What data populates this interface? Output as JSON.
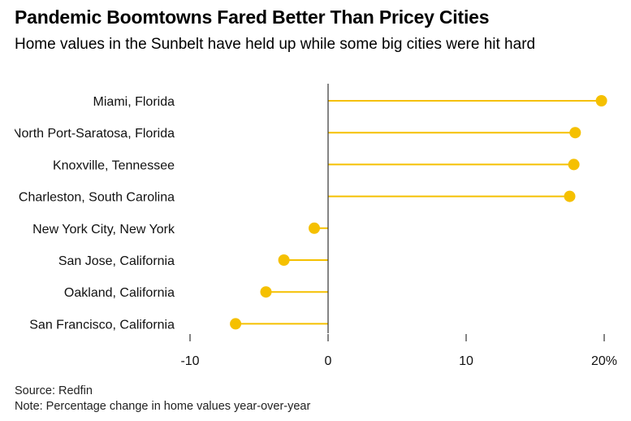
{
  "header": {
    "title": "Pandemic Boomtowns Fared Better Than Pricey Cities",
    "subtitle": "Home values in the Sunbelt have held up while some big cities were hit hard"
  },
  "footer": {
    "source": "Source: Redfin",
    "note": "Note: Percentage change in home values year-over-year"
  },
  "chart_data": {
    "type": "lollipop",
    "title": "Pandemic Boomtowns Fared Better Than Pricey Cities",
    "subtitle": "Home values in the Sunbelt have held up while some big cities were hit hard",
    "xlabel": "",
    "ylabel": "",
    "xlim": [
      -10,
      20
    ],
    "x_ticks": [
      -10,
      0,
      10,
      20
    ],
    "x_tick_labels": [
      "-10",
      "0",
      "10",
      "20%"
    ],
    "categories": [
      "Miami, Florida",
      "North Port-Saratosa, Florida",
      "Knoxville, Tennessee",
      "Charleston, South Carolina",
      "New York City, New York",
      "San Jose, California",
      "Oakland, California",
      "San Francisco, California"
    ],
    "values": [
      19.8,
      17.9,
      17.8,
      17.5,
      -1.0,
      -3.2,
      -4.5,
      -6.7
    ],
    "color": "#f5c000",
    "zero_line_color": "#333333"
  }
}
